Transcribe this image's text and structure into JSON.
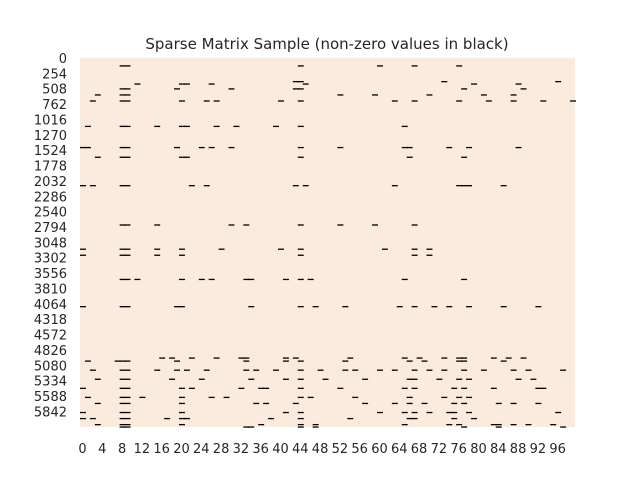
{
  "chart_data": {
    "type": "heatmap",
    "title": "Sparse Matrix Sample (non-zero values in black)",
    "xlabel": "",
    "ylabel": "",
    "n_cols": 100,
    "n_rows": 6100,
    "x_ticks": [
      0,
      4,
      8,
      12,
      16,
      20,
      24,
      28,
      32,
      36,
      40,
      44,
      48,
      52,
      56,
      60,
      64,
      68,
      72,
      76,
      80,
      84,
      88,
      92,
      96
    ],
    "y_ticks": [
      0,
      254,
      508,
      762,
      1016,
      1270,
      1524,
      1778,
      2032,
      2286,
      2540,
      2794,
      3048,
      3302,
      3556,
      3810,
      4064,
      4318,
      4572,
      4826,
      5080,
      5334,
      5588,
      5842
    ],
    "background_color": "#faebdd",
    "nonzero_color": "#000000",
    "grid": false,
    "nonzero_entries": [
      {
        "row": 120,
        "cols": [
          8,
          9,
          44,
          60,
          67,
          76
        ]
      },
      {
        "row": 380,
        "cols": [
          43,
          44,
          73,
          96
        ]
      },
      {
        "row": 420,
        "cols": [
          11,
          20,
          21,
          26,
          45,
          79,
          88
        ]
      },
      {
        "row": 500,
        "cols": [
          8,
          9,
          19,
          30,
          43,
          44,
          77,
          89
        ]
      },
      {
        "row": 600,
        "cols": [
          3,
          8,
          9,
          52,
          59,
          70,
          81,
          87
        ]
      },
      {
        "row": 700,
        "cols": [
          2,
          8,
          9,
          20,
          25,
          27,
          40,
          44,
          63,
          67,
          76,
          82,
          87,
          93,
          99
        ]
      },
      {
        "row": 1120,
        "cols": [
          1,
          8,
          9,
          15,
          20,
          21,
          27,
          31,
          39,
          44,
          65
        ]
      },
      {
        "row": 1470,
        "cols": [
          0,
          1,
          8,
          9,
          19,
          24,
          26,
          30,
          44,
          52,
          65,
          66,
          74,
          78,
          88
        ]
      },
      {
        "row": 1630,
        "cols": [
          3,
          8,
          9,
          20,
          21,
          44,
          66,
          77
        ]
      },
      {
        "row": 2100,
        "cols": [
          0,
          2,
          8,
          9,
          22,
          25,
          43,
          45,
          63,
          76,
          77,
          78,
          85
        ]
      },
      {
        "row": 2750,
        "cols": [
          8,
          9,
          15,
          30,
          33,
          44,
          52,
          59,
          67
        ]
      },
      {
        "row": 3150,
        "cols": [
          0,
          8,
          9,
          15,
          20,
          28,
          40,
          44,
          61,
          67,
          70
        ]
      },
      {
        "row": 3250,
        "cols": [
          0,
          8,
          9,
          15,
          20,
          44,
          67,
          70
        ]
      },
      {
        "row": 3650,
        "cols": [
          8,
          9,
          11,
          20,
          24,
          26,
          33,
          34,
          41,
          44,
          46,
          65,
          77
        ]
      },
      {
        "row": 4100,
        "cols": [
          0,
          8,
          9,
          19,
          20,
          34,
          44,
          47,
          53,
          64,
          67,
          71,
          74,
          78,
          85,
          92
        ]
      },
      {
        "row": 4950,
        "cols": [
          16,
          18,
          22,
          27,
          32,
          33,
          41,
          43,
          54,
          65,
          68,
          73,
          76,
          77,
          83,
          86,
          89
        ]
      },
      {
        "row": 5000,
        "cols": [
          1,
          7,
          8,
          9,
          19,
          33,
          41,
          44,
          53,
          66,
          69,
          76,
          77,
          85
        ]
      },
      {
        "row": 5150,
        "cols": [
          2,
          8,
          9,
          15,
          19,
          21,
          25,
          33,
          35,
          39,
          44,
          48,
          53,
          55,
          60,
          63,
          67,
          70,
          73,
          77,
          81,
          87,
          90,
          97
        ]
      },
      {
        "row": 5300,
        "cols": [
          3,
          8,
          9,
          18,
          24,
          34,
          41,
          44,
          49,
          57,
          66,
          67,
          72,
          76,
          78,
          88,
          91
        ]
      },
      {
        "row": 5450,
        "cols": [
          0,
          8,
          9,
          20,
          22,
          32,
          36,
          37,
          44,
          52,
          65,
          67,
          75,
          77,
          83,
          92,
          93
        ]
      },
      {
        "row": 5600,
        "cols": [
          1,
          8,
          9,
          12,
          20,
          26,
          29,
          44,
          46,
          55,
          66,
          73,
          76,
          78
        ]
      },
      {
        "row": 5700,
        "cols": [
          3,
          8,
          9,
          20,
          35,
          37,
          43,
          57,
          63,
          66,
          69,
          75,
          77,
          84,
          87,
          92
        ]
      },
      {
        "row": 5850,
        "cols": [
          0,
          8,
          9,
          20,
          41,
          44,
          60,
          65,
          67,
          70,
          74,
          75,
          78,
          96
        ]
      },
      {
        "row": 5950,
        "cols": [
          0,
          2,
          8,
          9,
          17,
          20,
          21,
          38,
          44,
          54,
          66,
          67,
          75,
          79
        ]
      },
      {
        "row": 6050,
        "cols": [
          3,
          8,
          9,
          20,
          36,
          44,
          47,
          65,
          74,
          76,
          83,
          84,
          87,
          90,
          95
        ]
      },
      {
        "row": 6090,
        "cols": [
          8,
          9,
          33,
          34,
          44,
          47,
          77,
          84,
          97
        ]
      }
    ]
  }
}
